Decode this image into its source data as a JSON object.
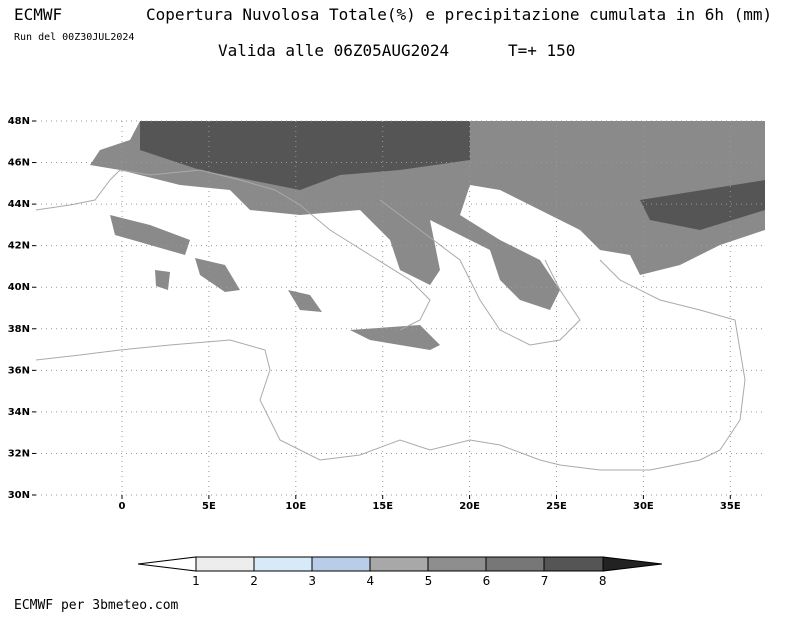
{
  "header": {
    "model": "ECMWF",
    "title": "Copertura Nuvolosa Totale(%) e precipitazione cumulata in 6h (mm)",
    "run": "Run del 00Z30JUL2024",
    "valid": "Valida alle 06Z05AUG2024",
    "step": "T=+ 150"
  },
  "map": {
    "lat_ticks": [
      "48N",
      "46N",
      "44N",
      "42N",
      "40N",
      "38N",
      "36N",
      "34N",
      "32N",
      "30N"
    ],
    "lon_ticks": [
      "0",
      "5E",
      "10E",
      "15E",
      "20E",
      "25E",
      "30E",
      "35E"
    ]
  },
  "colorbar": {
    "labels": [
      "1",
      "2",
      "3",
      "4",
      "5",
      "6",
      "7",
      "8"
    ]
  },
  "footer": "ECMWF per 3bmeteo.com"
}
